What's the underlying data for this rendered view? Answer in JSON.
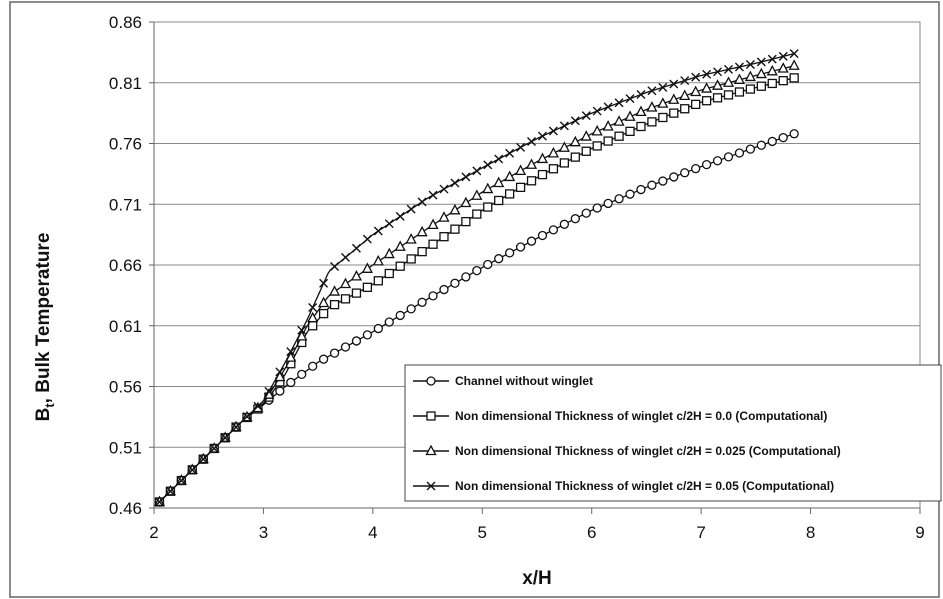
{
  "chart_data": {
    "type": "line",
    "title": "",
    "xlabel": "x/H",
    "ylabel_main": "B",
    "ylabel_sub": "t",
    "ylabel_rest": ", Bulk Temperature",
    "xlim": [
      2,
      9
    ],
    "ylim": [
      0.46,
      0.86
    ],
    "xticks": [
      2,
      3,
      4,
      5,
      6,
      7,
      8,
      9
    ],
    "yticks": [
      "0.46",
      "0.51",
      "0.56",
      "0.61",
      "0.66",
      "0.71",
      "0.76",
      "0.81",
      "0.86"
    ],
    "grid_y": true,
    "grid_x": false,
    "legend_position": "bottom-right",
    "series": [
      {
        "name": "Channel without winglet",
        "marker": "circle",
        "x": [
          2.05,
          2.8,
          3.0,
          3.2,
          3.5,
          4.0,
          4.5,
          5.0,
          5.5,
          6.0,
          6.5,
          7.0,
          7.5,
          7.85
        ],
        "y": [
          0.465,
          0.531,
          0.545,
          0.56,
          0.58,
          0.605,
          0.632,
          0.658,
          0.682,
          0.705,
          0.724,
          0.741,
          0.757,
          0.768
        ]
      },
      {
        "name": "Non dimensional Thickness of winglet c/2H = 0.0 (Computational)",
        "marker": "square",
        "x": [
          2.05,
          2.8,
          3.0,
          3.2,
          3.4,
          3.6,
          4.0,
          4.5,
          5.0,
          5.5,
          6.0,
          6.5,
          7.0,
          7.5,
          7.85
        ],
        "y": [
          0.465,
          0.531,
          0.545,
          0.57,
          0.605,
          0.625,
          0.644,
          0.674,
          0.705,
          0.732,
          0.756,
          0.776,
          0.794,
          0.806,
          0.814
        ]
      },
      {
        "name": "Non dimensional Thickness of winglet c/2H = 0.025 (Computational)",
        "marker": "triangle",
        "x": [
          2.05,
          2.8,
          3.0,
          3.2,
          3.4,
          3.6,
          4.0,
          4.5,
          5.0,
          5.5,
          6.0,
          6.5,
          7.0,
          7.5,
          7.85
        ],
        "y": [
          0.465,
          0.531,
          0.546,
          0.575,
          0.61,
          0.635,
          0.66,
          0.69,
          0.72,
          0.745,
          0.768,
          0.788,
          0.804,
          0.816,
          0.824
        ]
      },
      {
        "name": "Non dimensional Thickness of winglet c/2H = 0.05 (Computational)",
        "marker": "x",
        "x": [
          2.05,
          2.8,
          3.0,
          3.2,
          3.4,
          3.6,
          4.0,
          4.5,
          5.0,
          5.5,
          6.0,
          6.5,
          7.0,
          7.5,
          7.85
        ],
        "y": [
          0.465,
          0.531,
          0.548,
          0.58,
          0.615,
          0.655,
          0.685,
          0.715,
          0.74,
          0.764,
          0.785,
          0.802,
          0.816,
          0.826,
          0.834
        ]
      }
    ]
  }
}
